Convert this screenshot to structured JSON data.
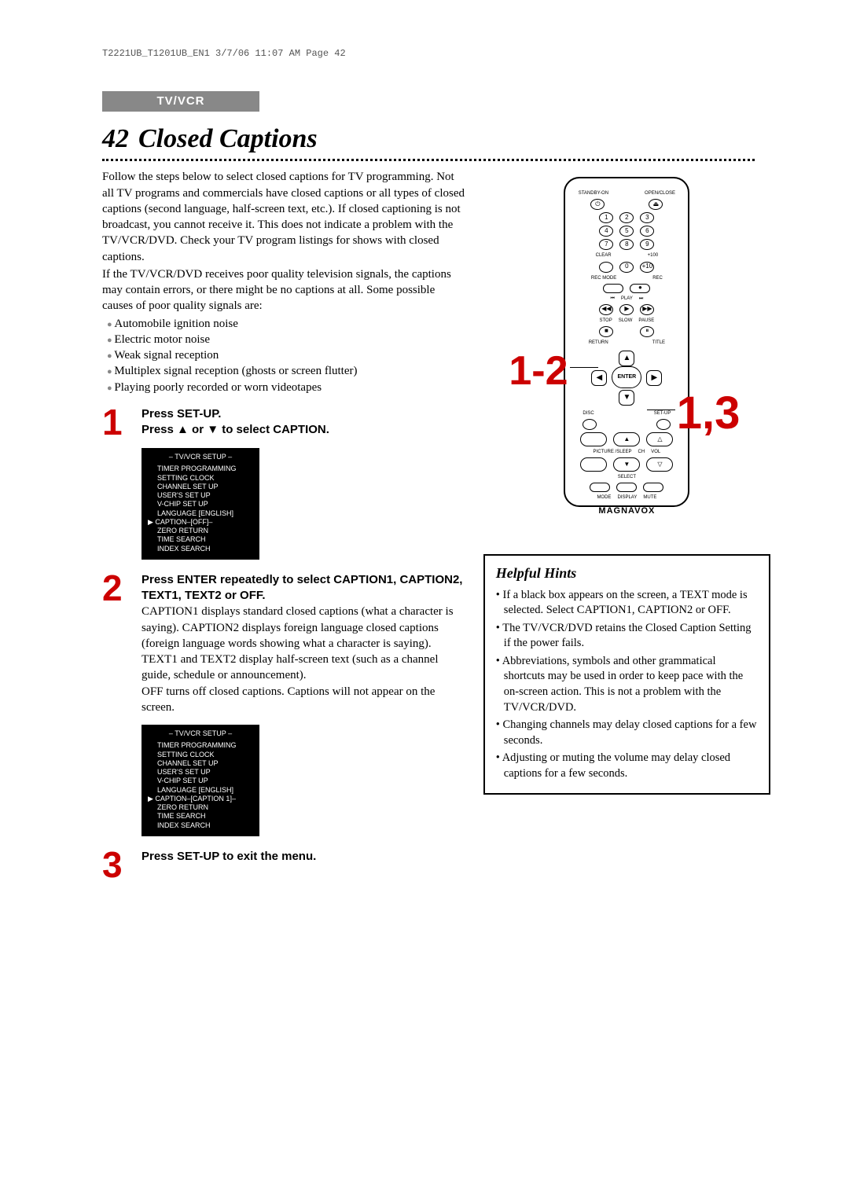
{
  "headerLine": "T2221UB_T1201UB_EN1  3/7/06  11:07 AM  Page 42",
  "badge": "TV/VCR",
  "pageNumber": "42",
  "pageTitle": "Closed Captions",
  "intro1": "Follow the steps below to select closed captions for TV programming. Not all TV programs and commercials have closed captions or all types of closed captions (second language, half-screen text, etc.). If closed captioning is not broadcast, you cannot receive it. This does not indicate a problem with the TV/VCR/DVD. Check your TV program listings for shows with closed captions.",
  "intro2": "If the TV/VCR/DVD receives poor quality television signals, the captions may contain errors, or there might be no captions at all. Some possible causes of poor quality signals are:",
  "bullets": [
    "Automobile ignition noise",
    "Electric motor noise",
    "Weak signal reception",
    "Multiplex signal reception (ghosts or screen flutter)",
    "Playing poorly recorded or worn videotapes"
  ],
  "steps": {
    "s1": {
      "n": "1",
      "l1": "Press SET-UP.",
      "l2": "Press ▲ or ▼ to select CAPTION."
    },
    "s2": {
      "n": "2",
      "l1": "Press ENTER repeatedly to select CAPTION1, CAPTION2, TEXT1, TEXT2 or OFF.",
      "body": "CAPTION1 displays standard closed captions (what a character is saying). CAPTION2 displays foreign language closed captions (foreign language words showing what a character is saying).\nTEXT1 and TEXT2 display half-screen text (such as a channel guide, schedule or announcement).\nOFF turns off closed captions. Captions will not appear on the screen."
    },
    "s3": {
      "n": "3",
      "l1": "Press SET-UP to exit the menu."
    }
  },
  "menu": {
    "header": "– TV/VCR SETUP –",
    "items1": [
      "TIMER PROGRAMMING",
      "SETTING CLOCK",
      "CHANNEL SET UP",
      "USER'S SET UP",
      "V-CHIP SET UP",
      "LANGUAGE [ENGLISH]",
      "CAPTION–[OFF]–",
      "ZERO RETURN",
      "TIME SEARCH",
      "INDEX SEARCH"
    ],
    "items2": [
      "TIMER PROGRAMMING",
      "SETTING CLOCK",
      "CHANNEL SET UP",
      "USER'S SET UP",
      "V-CHIP SET UP",
      "LANGUAGE [ENGLISH]",
      "CAPTION–[CAPTION 1]–",
      "ZERO RETURN",
      "TIME SEARCH",
      "INDEX SEARCH"
    ],
    "selectedIndex": 6
  },
  "remote": {
    "standby": "STANDBY-ON",
    "openclose": "OPEN/CLOSE",
    "clear": "CLEAR",
    "plus100": "+100",
    "plus10": "+10",
    "recmode": "REC MODE",
    "rec": "REC",
    "play": "PLAY",
    "stop": "STOP",
    "slow": "SLOW",
    "pause": "PAUSE",
    "return": "RETURN",
    "title": "TITLE",
    "enter": "ENTER",
    "disc": "DISC",
    "setup": "SET-UP",
    "picturesleep": "PICTURE /SLEEP",
    "ch": "CH",
    "vol": "VOL",
    "select": "SELECT",
    "mode": "MODE",
    "display": "DISPLAY",
    "mute": "MUTE",
    "brand": "MAGNAVOX"
  },
  "callouts": {
    "c12": "1-2",
    "c13": "1,3"
  },
  "hints": {
    "title": "Helpful Hints",
    "items": [
      "If a black box appears on the screen, a TEXT mode is selected. Select CAPTION1, CAPTION2 or OFF.",
      "The TV/VCR/DVD retains the Closed Caption Setting if the power fails.",
      "Abbreviations, symbols and other grammatical shortcuts may be used in order to keep pace with the on-screen action. This is not a problem with the TV/VCR/DVD.",
      "Changing channels may delay closed captions for a few seconds.",
      "Adjusting or muting the volume may delay closed captions for a few seconds."
    ]
  }
}
